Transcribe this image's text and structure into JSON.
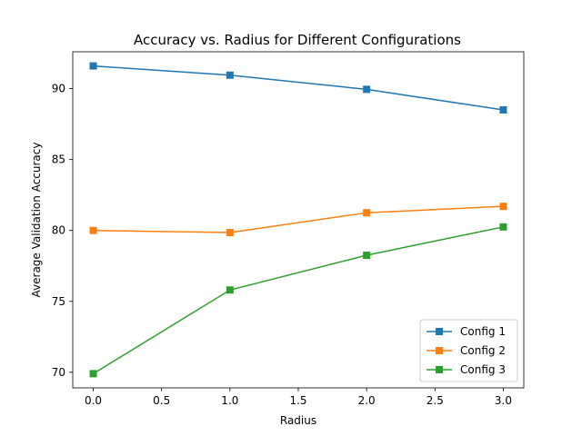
{
  "chart_data": {
    "type": "line",
    "title": "Accuracy vs. Radius for Different Configurations",
    "xlabel": "Radius",
    "ylabel": "Average Validation Accuracy",
    "x": [
      0.0,
      1.0,
      2.0,
      3.0
    ],
    "xlim": [
      -0.15,
      3.15
    ],
    "ylim": [
      68.9,
      92.6
    ],
    "xticks": [
      "0.0",
      "0.5",
      "1.0",
      "1.5",
      "2.0",
      "2.5",
      "3.0"
    ],
    "xtick_values": [
      0.0,
      0.5,
      1.0,
      1.5,
      2.0,
      2.5,
      3.0
    ],
    "yticks": [
      "70",
      "75",
      "80",
      "85",
      "90"
    ],
    "ytick_values": [
      70,
      75,
      80,
      85,
      90
    ],
    "grid": false,
    "legend_position": "lower-right",
    "marker": "square",
    "series": [
      {
        "name": "Config 1",
        "color": "#1f77b4",
        "values": [
          91.6,
          90.95,
          89.95,
          88.5
        ]
      },
      {
        "name": "Config 2",
        "color": "#ff7f0e",
        "values": [
          80.0,
          79.85,
          81.25,
          81.7
        ]
      },
      {
        "name": "Config 3",
        "color": "#2ca02c",
        "values": [
          69.9,
          75.8,
          78.25,
          80.25
        ]
      }
    ]
  }
}
